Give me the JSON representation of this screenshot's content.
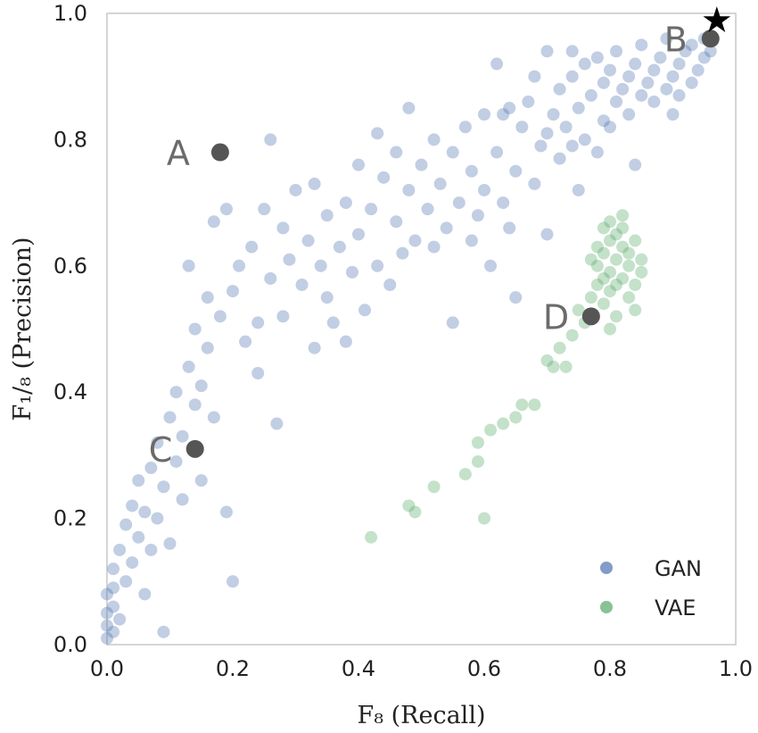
{
  "chart_data": {
    "type": "scatter",
    "xlabel": "F₈ (Recall)",
    "ylabel": "F₁/₈ (Precision)",
    "xlim": [
      0,
      1
    ],
    "ylim": [
      0,
      1
    ],
    "x_ticks": [
      "0.0",
      "0.2",
      "0.4",
      "0.6",
      "0.8",
      "1.0"
    ],
    "y_ticks": [
      "0.0",
      "0.2",
      "0.4",
      "0.6",
      "0.8",
      "1.0"
    ],
    "grid": true,
    "legend_position": "bottom-right",
    "series": [
      {
        "name": "GAN",
        "color": "#4c72b0",
        "points": [
          [
            0.0,
            0.01
          ],
          [
            0.0,
            0.03
          ],
          [
            0.0,
            0.05
          ],
          [
            0.0,
            0.08
          ],
          [
            0.01,
            0.02
          ],
          [
            0.01,
            0.06
          ],
          [
            0.01,
            0.09
          ],
          [
            0.01,
            0.12
          ],
          [
            0.02,
            0.04
          ],
          [
            0.02,
            0.15
          ],
          [
            0.03,
            0.1
          ],
          [
            0.03,
            0.19
          ],
          [
            0.04,
            0.22
          ],
          [
            0.04,
            0.13
          ],
          [
            0.05,
            0.17
          ],
          [
            0.05,
            0.26
          ],
          [
            0.06,
            0.21
          ],
          [
            0.06,
            0.08
          ],
          [
            0.07,
            0.28
          ],
          [
            0.07,
            0.15
          ],
          [
            0.08,
            0.32
          ],
          [
            0.08,
            0.2
          ],
          [
            0.09,
            0.25
          ],
          [
            0.09,
            0.02
          ],
          [
            0.1,
            0.36
          ],
          [
            0.1,
            0.16
          ],
          [
            0.11,
            0.29
          ],
          [
            0.11,
            0.4
          ],
          [
            0.12,
            0.33
          ],
          [
            0.12,
            0.23
          ],
          [
            0.13,
            0.44
          ],
          [
            0.13,
            0.6
          ],
          [
            0.14,
            0.38
          ],
          [
            0.14,
            0.5
          ],
          [
            0.15,
            0.41
          ],
          [
            0.15,
            0.26
          ],
          [
            0.16,
            0.47
          ],
          [
            0.16,
            0.55
          ],
          [
            0.17,
            0.36
          ],
          [
            0.17,
            0.67
          ],
          [
            0.18,
            0.52
          ],
          [
            0.19,
            0.21
          ],
          [
            0.19,
            0.69
          ],
          [
            0.2,
            0.56
          ],
          [
            0.2,
            0.1
          ],
          [
            0.21,
            0.6
          ],
          [
            0.22,
            0.48
          ],
          [
            0.23,
            0.63
          ],
          [
            0.24,
            0.43
          ],
          [
            0.24,
            0.51
          ],
          [
            0.25,
            0.69
          ],
          [
            0.26,
            0.8
          ],
          [
            0.26,
            0.58
          ],
          [
            0.27,
            0.35
          ],
          [
            0.28,
            0.66
          ],
          [
            0.28,
            0.52
          ],
          [
            0.29,
            0.61
          ],
          [
            0.3,
            0.72
          ],
          [
            0.31,
            0.57
          ],
          [
            0.32,
            0.64
          ],
          [
            0.33,
            0.47
          ],
          [
            0.33,
            0.73
          ],
          [
            0.34,
            0.6
          ],
          [
            0.35,
            0.68
          ],
          [
            0.35,
            0.55
          ],
          [
            0.36,
            0.51
          ],
          [
            0.37,
            0.63
          ],
          [
            0.38,
            0.7
          ],
          [
            0.38,
            0.48
          ],
          [
            0.39,
            0.59
          ],
          [
            0.4,
            0.76
          ],
          [
            0.4,
            0.65
          ],
          [
            0.41,
            0.53
          ],
          [
            0.42,
            0.69
          ],
          [
            0.43,
            0.81
          ],
          [
            0.43,
            0.6
          ],
          [
            0.44,
            0.74
          ],
          [
            0.45,
            0.57
          ],
          [
            0.46,
            0.67
          ],
          [
            0.46,
            0.78
          ],
          [
            0.47,
            0.62
          ],
          [
            0.48,
            0.72
          ],
          [
            0.48,
            0.85
          ],
          [
            0.49,
            0.64
          ],
          [
            0.5,
            0.76
          ],
          [
            0.51,
            0.69
          ],
          [
            0.52,
            0.8
          ],
          [
            0.52,
            0.63
          ],
          [
            0.53,
            0.73
          ],
          [
            0.54,
            0.66
          ],
          [
            0.55,
            0.78
          ],
          [
            0.55,
            0.51
          ],
          [
            0.56,
            0.7
          ],
          [
            0.57,
            0.82
          ],
          [
            0.58,
            0.64
          ],
          [
            0.58,
            0.75
          ],
          [
            0.59,
            0.68
          ],
          [
            0.6,
            0.84
          ],
          [
            0.6,
            0.72
          ],
          [
            0.61,
            0.6
          ],
          [
            0.62,
            0.78
          ],
          [
            0.63,
            0.7
          ],
          [
            0.63,
            0.84
          ],
          [
            0.64,
            0.66
          ],
          [
            0.65,
            0.75
          ],
          [
            0.65,
            0.55
          ],
          [
            0.66,
            0.82
          ],
          [
            0.67,
            0.86
          ],
          [
            0.68,
            0.73
          ],
          [
            0.69,
            0.79
          ],
          [
            0.7,
            0.81
          ],
          [
            0.7,
            0.65
          ],
          [
            0.71,
            0.84
          ],
          [
            0.72,
            0.77
          ],
          [
            0.72,
            0.88
          ],
          [
            0.73,
            0.82
          ],
          [
            0.74,
            0.9
          ],
          [
            0.74,
            0.79
          ],
          [
            0.75,
            0.85
          ],
          [
            0.76,
            0.92
          ],
          [
            0.76,
            0.8
          ],
          [
            0.77,
            0.87
          ],
          [
            0.78,
            0.93
          ],
          [
            0.79,
            0.83
          ],
          [
            0.79,
            0.89
          ],
          [
            0.8,
            0.91
          ],
          [
            0.81,
            0.86
          ],
          [
            0.81,
            0.94
          ],
          [
            0.82,
            0.88
          ],
          [
            0.83,
            0.9
          ],
          [
            0.83,
            0.84
          ],
          [
            0.84,
            0.92
          ],
          [
            0.85,
            0.87
          ],
          [
            0.85,
            0.95
          ],
          [
            0.86,
            0.89
          ],
          [
            0.87,
            0.91
          ],
          [
            0.87,
            0.86
          ],
          [
            0.88,
            0.93
          ],
          [
            0.89,
            0.88
          ],
          [
            0.89,
            0.96
          ],
          [
            0.9,
            0.9
          ],
          [
            0.91,
            0.92
          ],
          [
            0.91,
            0.87
          ],
          [
            0.92,
            0.94
          ],
          [
            0.93,
            0.89
          ],
          [
            0.93,
            0.95
          ],
          [
            0.94,
            0.91
          ],
          [
            0.95,
            0.93
          ],
          [
            0.95,
            0.96
          ],
          [
            0.96,
            0.94
          ],
          [
            0.64,
            0.85
          ],
          [
            0.68,
            0.9
          ],
          [
            0.7,
            0.94
          ],
          [
            0.74,
            0.94
          ],
          [
            0.62,
            0.92
          ],
          [
            0.84,
            0.76
          ],
          [
            0.9,
            0.84
          ],
          [
            0.78,
            0.78
          ],
          [
            0.75,
            0.72
          ],
          [
            0.8,
            0.82
          ]
        ]
      },
      {
        "name": "VAE",
        "color": "#55a868",
        "points": [
          [
            0.42,
            0.17
          ],
          [
            0.48,
            0.22
          ],
          [
            0.49,
            0.21
          ],
          [
            0.52,
            0.25
          ],
          [
            0.57,
            0.27
          ],
          [
            0.59,
            0.29
          ],
          [
            0.59,
            0.32
          ],
          [
            0.6,
            0.2
          ],
          [
            0.61,
            0.34
          ],
          [
            0.63,
            0.35
          ],
          [
            0.65,
            0.36
          ],
          [
            0.66,
            0.38
          ],
          [
            0.68,
            0.38
          ],
          [
            0.7,
            0.45
          ],
          [
            0.71,
            0.44
          ],
          [
            0.72,
            0.47
          ],
          [
            0.73,
            0.44
          ],
          [
            0.74,
            0.49
          ],
          [
            0.75,
            0.53
          ],
          [
            0.76,
            0.51
          ],
          [
            0.77,
            0.55
          ],
          [
            0.78,
            0.57
          ],
          [
            0.78,
            0.6
          ],
          [
            0.79,
            0.58
          ],
          [
            0.79,
            0.62
          ],
          [
            0.8,
            0.59
          ],
          [
            0.8,
            0.64
          ],
          [
            0.8,
            0.56
          ],
          [
            0.81,
            0.61
          ],
          [
            0.81,
            0.65
          ],
          [
            0.82,
            0.58
          ],
          [
            0.82,
            0.63
          ],
          [
            0.82,
            0.66
          ],
          [
            0.83,
            0.6
          ],
          [
            0.83,
            0.62
          ],
          [
            0.84,
            0.57
          ],
          [
            0.84,
            0.64
          ],
          [
            0.85,
            0.59
          ],
          [
            0.79,
            0.54
          ],
          [
            0.81,
            0.52
          ],
          [
            0.8,
            0.67
          ],
          [
            0.78,
            0.63
          ],
          [
            0.83,
            0.55
          ],
          [
            0.82,
            0.68
          ],
          [
            0.77,
            0.61
          ],
          [
            0.85,
            0.61
          ],
          [
            0.81,
            0.57
          ],
          [
            0.79,
            0.66
          ],
          [
            0.84,
            0.53
          ],
          [
            0.8,
            0.5
          ]
        ]
      }
    ],
    "annotations": [
      {
        "label": "A",
        "x": 0.18,
        "y": 0.78
      },
      {
        "label": "B",
        "x": 0.96,
        "y": 0.96
      },
      {
        "label": "C",
        "x": 0.14,
        "y": 0.31
      },
      {
        "label": "D",
        "x": 0.77,
        "y": 0.52
      }
    ],
    "optimum_marker": {
      "symbol": "★",
      "x": 0.97,
      "y": 0.99
    }
  }
}
